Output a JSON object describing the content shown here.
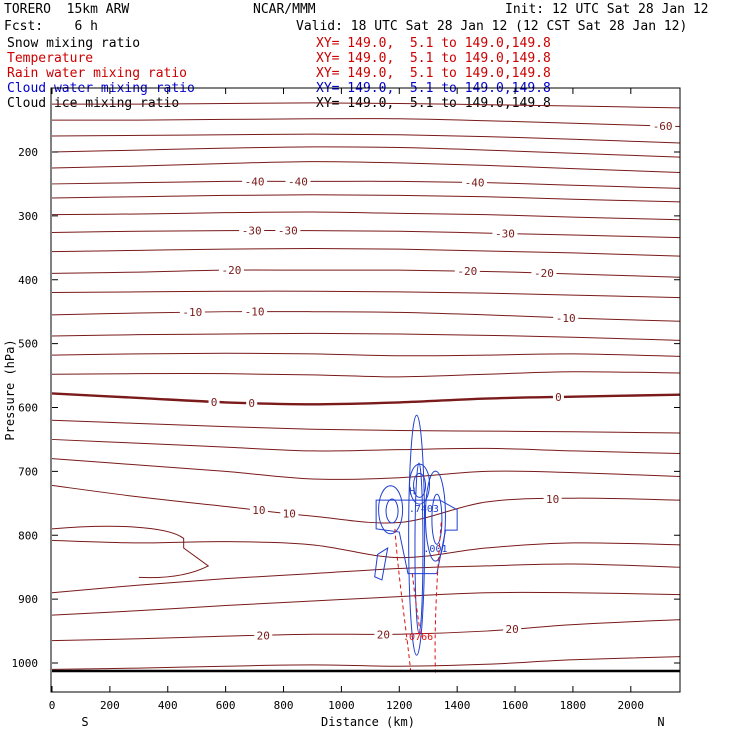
{
  "header": {
    "model": "TORERO  15km ARW",
    "center": "NCAR/MMM",
    "init": "Init: 12 UTC Sat 28 Jan 12",
    "fcst": "Fcst:    6 h",
    "valid": "Valid: 18 UTC Sat 28 Jan 12 (12 CST Sat 28 Jan 12)"
  },
  "legend": [
    {
      "name": "Snow mixing ratio",
      "xy": "XY= 149.0,  5.1 to 149.0,149.8",
      "name_color": "#000000",
      "xy_color": "#cc0000"
    },
    {
      "name": "Temperature",
      "xy": "XY= 149.0,  5.1 to 149.0,149.8",
      "name_color": "#cc0000",
      "xy_color": "#cc0000"
    },
    {
      "name": "Rain water mixing ratio",
      "xy": "XY= 149.0,  5.1 to 149.0,149.8",
      "name_color": "#cc0000",
      "xy_color": "#cc0000"
    },
    {
      "name": "Cloud water mixing ratio",
      "xy": "XY= 149.0,  5.1 to 149.0,149.8",
      "name_color": "#0000cc",
      "xy_color": "#0000cc"
    },
    {
      "name": "Cloud ice mixing ratio",
      "xy": "XY= 149.0,  5.1 to 149.0,149.8",
      "name_color": "#000000",
      "xy_color": "#000000"
    }
  ],
  "chart_data": {
    "type": "contour",
    "xlabel": "Distance (km)",
    "ylabel": "Pressure (hPa)",
    "xlim": [
      0,
      2170
    ],
    "ylim": [
      1020,
      100
    ],
    "x_ticks": [
      0,
      200,
      400,
      600,
      800,
      1000,
      1200,
      1400,
      1600,
      1800,
      2000
    ],
    "y_ticks": [
      200,
      300,
      400,
      500,
      600,
      700,
      800,
      900,
      1000
    ],
    "x_end_labels": {
      "left": "S",
      "right": "N"
    },
    "temperature_contours": [
      {
        "p": [
          125,
          125,
          124,
          123,
          124,
          126,
          128,
          131
        ],
        "labels": []
      },
      {
        "p": [
          150,
          150,
          149,
          148,
          148,
          151,
          155,
          160
        ],
        "labels": [
          {
            "x": 2110,
            "text": "-60"
          }
        ]
      },
      {
        "p": [
          175,
          174,
          173,
          172,
          173,
          176,
          180,
          186
        ],
        "labels": []
      },
      {
        "p": [
          200,
          197,
          194,
          192,
          193,
          197,
          202,
          208
        ],
        "labels": []
      },
      {
        "p": [
          225,
          222,
          218,
          215,
          217,
          221,
          226,
          232
        ],
        "labels": []
      },
      {
        "p": [
          250,
          248,
          246,
          246,
          246,
          248,
          252,
          257
        ],
        "labels": [
          {
            "x": 700,
            "text": "-40"
          },
          {
            "x": 850,
            "text": "-40"
          },
          {
            "x": 1460,
            "text": "-40"
          }
        ]
      },
      {
        "p": [
          272,
          270,
          268,
          267,
          268,
          270,
          274,
          278
        ],
        "labels": []
      },
      {
        "p": [
          298,
          297,
          295,
          294,
          296,
          298,
          302,
          306
        ],
        "labels": []
      },
      {
        "p": [
          326,
          324,
          323,
          323,
          324,
          327,
          330,
          334
        ],
        "labels": [
          {
            "x": 690,
            "text": "-30"
          },
          {
            "x": 815,
            "text": "-30"
          },
          {
            "x": 1565,
            "text": "-30"
          }
        ]
      },
      {
        "p": [
          356,
          354,
          352,
          351,
          352,
          355,
          358,
          363
        ],
        "labels": []
      },
      {
        "p": [
          390,
          388,
          385,
          385,
          385,
          387,
          391,
          396
        ],
        "labels": [
          {
            "x": 620,
            "text": "-20"
          },
          {
            "x": 1435,
            "text": "-20"
          },
          {
            "x": 1700,
            "text": "-20"
          }
        ]
      },
      {
        "p": [
          420,
          419,
          418,
          418,
          419,
          421,
          424,
          428
        ],
        "labels": []
      },
      {
        "p": [
          455,
          452,
          450,
          450,
          451,
          455,
          460,
          465
        ],
        "labels": [
          {
            "x": 485,
            "text": "-10"
          },
          {
            "x": 700,
            "text": "-10"
          },
          {
            "x": 1775,
            "text": "-10"
          }
        ]
      },
      {
        "p": [
          488,
          486,
          485,
          484,
          485,
          487,
          490,
          495
        ],
        "labels": []
      },
      {
        "p": [
          518,
          516,
          515,
          516,
          519,
          518,
          516,
          520
        ],
        "labels": []
      },
      {
        "p": [
          548,
          547,
          547,
          549,
          552,
          548,
          544,
          546
        ],
        "labels": []
      },
      {
        "p": [
          578,
          585,
          592,
          595,
          592,
          586,
          583,
          580
        ],
        "labels": [
          {
            "x": 560,
            "text": "0"
          },
          {
            "x": 690,
            "text": "0"
          },
          {
            "x": 1750,
            "text": "0"
          }
        ],
        "bold": true
      },
      {
        "p": [
          620,
          625,
          630,
          634,
          636,
          637,
          638,
          640
        ],
        "labels": []
      },
      {
        "p": [
          650,
          656,
          662,
          668,
          666,
          664,
          668,
          672
        ],
        "labels": []
      },
      {
        "p": [
          680,
          690,
          700,
          712,
          710,
          700,
          702,
          708
        ],
        "labels": []
      },
      {
        "p": [
          722,
          740,
          755,
          770,
          780,
          748,
          742,
          745
        ],
        "labels": [
          {
            "x": 715,
            "text": "10"
          },
          {
            "x": 820,
            "text": "10"
          },
          {
            "x": 1730,
            "text": "10"
          }
        ]
      },
      {
        "p": [
          808,
          812,
          810,
          815,
          835,
          820,
          812,
          815
        ],
        "labels": []
      },
      {
        "p": [
          890,
          878,
          868,
          860,
          852,
          848,
          845,
          850
        ],
        "labels": []
      },
      {
        "p": [
          925,
          918,
          910,
          903,
          896,
          890,
          890,
          893
        ],
        "labels": []
      },
      {
        "p": [
          965,
          962,
          958,
          955,
          955,
          950,
          940,
          932
        ],
        "labels": [
          {
            "x": 730,
            "text": "20"
          },
          {
            "x": 1145,
            "text": "20"
          },
          {
            "x": 1590,
            "text": "20"
          }
        ]
      },
      {
        "p": [
          1010,
          1008,
          1005,
          1003,
          1005,
          1002,
          995,
          990
        ],
        "labels": []
      }
    ],
    "contour_x": [
      0,
      300,
      600,
      900,
      1200,
      1500,
      1800,
      2170
    ],
    "rain_labels": [
      {
        "x": 1265,
        "p": 958,
        "text": ".0766"
      }
    ],
    "cloud_water_labels": [
      {
        "x": 1285,
        "p": 757,
        "text": ".7403"
      },
      {
        "x": 1325,
        "p": 820,
        "text": ".001"
      }
    ],
    "cloud_max_marker": {
      "x": 1245,
      "p": 730,
      "text": "H"
    }
  }
}
